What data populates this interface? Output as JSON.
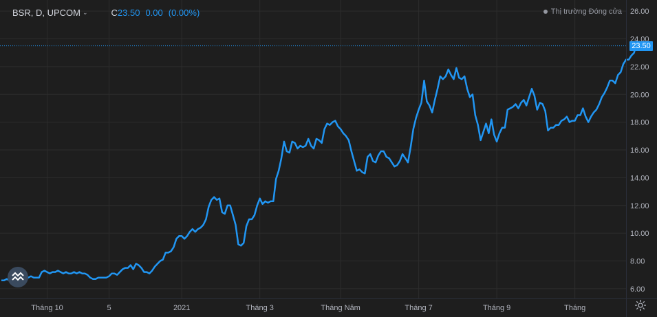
{
  "legend": {
    "symbol": "BSR, D, UPCOM",
    "close_label": "C",
    "close_value": "23.50",
    "change": "0.00",
    "change_pct": "(0.00%)"
  },
  "status": "Thị trường Đóng cửa",
  "colors": {
    "background": "#1e1e1e",
    "grid": "#2d2d2d",
    "line": "#2196f3",
    "text": "#b2b5be",
    "price_tag": "#2196f3"
  },
  "icons": {
    "goto_realtime": "go-to-realtime-icon",
    "settings": "gear-icon",
    "dropdown": "chevron-down-icon"
  },
  "chart_data": {
    "type": "line",
    "series": [
      {
        "values": [
          6.6,
          6.6,
          6.7,
          6.6,
          6.5,
          6.7,
          6.6,
          6.8,
          6.8,
          6.8,
          6.8,
          6.9,
          6.8,
          6.8,
          6.8,
          7.2,
          7.3,
          7.2,
          7.1,
          7.2,
          7.2,
          7.3,
          7.2,
          7.1,
          7.2,
          7.1,
          7.1,
          7.2,
          7.1,
          7.2,
          7.1,
          7.1,
          7.0,
          6.8,
          6.7,
          6.7,
          6.8,
          6.8,
          6.8,
          6.8,
          6.9,
          7.1,
          7.1,
          7.0,
          7.2,
          7.4,
          7.5,
          7.5,
          7.7,
          7.4,
          7.8,
          7.7,
          7.5,
          7.2,
          7.2,
          7.1,
          7.3,
          7.6,
          7.8,
          8.0,
          8.1,
          8.6,
          8.6,
          8.7,
          9.0,
          9.6,
          9.8,
          9.8,
          9.6,
          9.8,
          10.1,
          10.3,
          10.1,
          10.3,
          10.4,
          10.6,
          11.0,
          11.9,
          12.4,
          12.6,
          12.4,
          12.5,
          11.5,
          11.4,
          12.0,
          12.0,
          11.3,
          10.6,
          9.2,
          9.1,
          9.3,
          10.5,
          11.0,
          11.0,
          11.3,
          12.0,
          12.5,
          12.1,
          12.3,
          12.2,
          12.3,
          12.3,
          13.9,
          14.5,
          15.4,
          16.6,
          15.9,
          15.8,
          16.6,
          16.5,
          16.1,
          16.3,
          16.2,
          16.3,
          16.8,
          16.3,
          16.1,
          16.8,
          16.7,
          16.5,
          17.5,
          17.9,
          17.8,
          18.0,
          18.1,
          17.7,
          17.5,
          17.2,
          17.0,
          16.7,
          15.9,
          15.2,
          14.5,
          14.6,
          14.4,
          14.3,
          15.5,
          15.7,
          15.2,
          15.1,
          15.6,
          15.9,
          15.9,
          15.5,
          15.4,
          15.1,
          14.8,
          14.9,
          15.2,
          15.7,
          15.4,
          15.1,
          16.2,
          17.5,
          18.3,
          18.9,
          19.4,
          21.0,
          19.5,
          19.2,
          18.7,
          19.6,
          20.4,
          21.3,
          21.1,
          21.3,
          21.8,
          21.4,
          21.1,
          21.9,
          21.2,
          21.1,
          21.3,
          20.4,
          19.8,
          20.0,
          18.5,
          17.8,
          16.7,
          17.3,
          17.9,
          17.2,
          18.2,
          17.1,
          16.6,
          17.2,
          17.6,
          17.6,
          18.9,
          19.0,
          19.1,
          19.3,
          19.0,
          19.4,
          19.6,
          19.2,
          19.8,
          20.4,
          19.9,
          18.9,
          19.4,
          19.3,
          18.8,
          17.4,
          17.6,
          17.6,
          17.8,
          17.8,
          18.1,
          18.2,
          18.4,
          18.0,
          18.1,
          18.1,
          18.5,
          18.5,
          19.0,
          18.4,
          18.0,
          18.4,
          18.7,
          18.9,
          19.3,
          19.8,
          20.1,
          20.5,
          21.0,
          21.0,
          20.8,
          21.4,
          21.6,
          22.2,
          22.5,
          22.5,
          22.8,
          23.0,
          23.8,
          23.5,
          23.5
        ]
      }
    ],
    "last_value": 23.5,
    "x_tick_labels": [
      "Tháng 10",
      "5",
      "2021",
      "Tháng 3",
      "Tháng Năm",
      "Tháng 7",
      "Tháng 9",
      "Tháng"
    ],
    "x_tick_label_index": [
      17,
      40,
      67,
      96,
      126,
      155,
      184,
      213
    ],
    "y_ticks": [
      6.0,
      8.0,
      10.0,
      12.0,
      14.0,
      16.0,
      18.0,
      20.0,
      22.0,
      24.0,
      26.0
    ],
    "y_tick_labels": [
      "6.00",
      "8.00",
      "10.00",
      "12.00",
      "14.00",
      "16.00",
      "18.00",
      "20.00",
      "22.00",
      "24.00",
      "26.00"
    ],
    "ylim": [
      5.3,
      26.8
    ],
    "x_range": [
      -0.5,
      232
    ],
    "grid": true
  }
}
